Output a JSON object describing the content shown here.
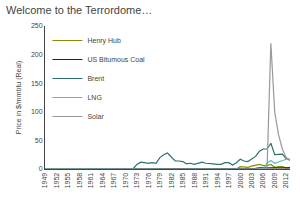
{
  "chart_data": {
    "type": "line",
    "title": "Welcome to the Terrordome…",
    "ylabel": "Price in $/mmbtu (Real)",
    "x": [
      1949,
      1950,
      1951,
      1952,
      1953,
      1954,
      1955,
      1956,
      1957,
      1958,
      1959,
      1960,
      1961,
      1962,
      1963,
      1964,
      1965,
      1966,
      1967,
      1968,
      1969,
      1970,
      1971,
      1972,
      1973,
      1974,
      1975,
      1976,
      1977,
      1978,
      1979,
      1980,
      1981,
      1982,
      1983,
      1984,
      1985,
      1986,
      1987,
      1988,
      1989,
      1990,
      1991,
      1992,
      1993,
      1994,
      1995,
      1996,
      1997,
      1998,
      1999,
      2000,
      2001,
      2002,
      2003,
      2004,
      2005,
      2006,
      2007,
      2008,
      2009,
      2010,
      2011,
      2012,
      2013
    ],
    "series": [
      {
        "name": "Henry Hub",
        "color": "#8B8B00",
        "values": [
          0,
          0,
          0,
          0,
          0,
          0,
          0,
          0,
          0,
          0,
          0,
          0,
          0,
          0,
          0,
          0,
          0,
          0,
          0,
          0,
          0,
          0,
          0,
          0,
          0,
          0,
          0,
          0,
          0,
          0,
          0,
          0,
          0,
          0,
          0,
          0,
          0,
          0,
          0,
          0,
          0,
          0,
          0,
          0,
          0,
          0,
          0,
          0,
          0,
          0,
          0,
          4,
          4,
          3,
          5,
          6,
          8,
          6,
          6,
          8,
          3,
          4,
          4,
          2,
          3
        ]
      },
      {
        "name": "US Bitumous Coal",
        "color": "#222222",
        "values": [
          0,
          0,
          0,
          0,
          0,
          0,
          0,
          0,
          0,
          0,
          0,
          0,
          0,
          0,
          0,
          0,
          0,
          0,
          0,
          0,
          0,
          0,
          0,
          0,
          0,
          0,
          0,
          0,
          0,
          0,
          0,
          0,
          0,
          0,
          0,
          0,
          0,
          0,
          0,
          0,
          0,
          0,
          0,
          0,
          0,
          0,
          0,
          0,
          0,
          0,
          0,
          1,
          1,
          1,
          1,
          1,
          2,
          2,
          2,
          2,
          2,
          2,
          2,
          2,
          2
        ]
      },
      {
        "name": "Brent",
        "color": "#2E7070",
        "values": [
          0,
          0,
          0,
          0,
          0,
          0,
          0,
          0,
          0,
          0,
          0,
          0,
          0,
          0,
          0,
          0,
          0,
          0,
          0,
          0,
          0,
          0,
          0,
          0,
          8,
          12,
          11,
          10,
          11,
          10,
          20,
          25,
          28,
          20,
          14,
          14,
          13,
          9,
          10,
          8,
          10,
          12,
          10,
          10,
          9,
          8,
          8,
          11,
          11,
          7,
          11,
          17,
          14,
          13,
          17,
          22,
          31,
          35,
          35,
          45,
          25,
          25,
          26,
          18,
          17
        ]
      },
      {
        "name": "LNG",
        "color": "#5BBCBC",
        "values": [
          0,
          0,
          0,
          0,
          0,
          0,
          0,
          0,
          0,
          0,
          0,
          0,
          0,
          0,
          0,
          0,
          0,
          0,
          0,
          0,
          0,
          0,
          0,
          0,
          0,
          0,
          0,
          0,
          0,
          0,
          0,
          0,
          0,
          0,
          0,
          0,
          0,
          0,
          0,
          0,
          0,
          0,
          0,
          0,
          0,
          0,
          0,
          0,
          0,
          0,
          0,
          0,
          0,
          0,
          0,
          0,
          0,
          0,
          10,
          15,
          10,
          12,
          14,
          17,
          16
        ]
      },
      {
        "name": "Solar",
        "color": "#999999",
        "values": [
          0,
          0,
          0,
          0,
          0,
          0,
          0,
          0,
          0,
          0,
          0,
          0,
          0,
          0,
          0,
          0,
          0,
          0,
          0,
          0,
          0,
          0,
          0,
          0,
          0,
          0,
          0,
          0,
          0,
          0,
          0,
          0,
          0,
          0,
          0,
          0,
          0,
          0,
          0,
          0,
          0,
          0,
          0,
          0,
          0,
          0,
          0,
          0,
          0,
          0,
          0,
          0,
          0,
          0,
          0,
          0,
          0,
          0,
          0,
          220,
          100,
          60,
          35,
          20,
          15
        ]
      }
    ],
    "xlim": [
      1949,
      2013
    ],
    "xticks": [
      1949,
      1952,
      1955,
      1958,
      1961,
      1964,
      1967,
      1970,
      1973,
      1976,
      1979,
      1982,
      1985,
      1988,
      1991,
      1994,
      1997,
      2000,
      2003,
      2006,
      2009,
      2012
    ],
    "ylim": [
      0,
      250
    ],
    "yticks": [
      0,
      50,
      100,
      150,
      200,
      250
    ],
    "grid": false,
    "legend": "upper left"
  }
}
